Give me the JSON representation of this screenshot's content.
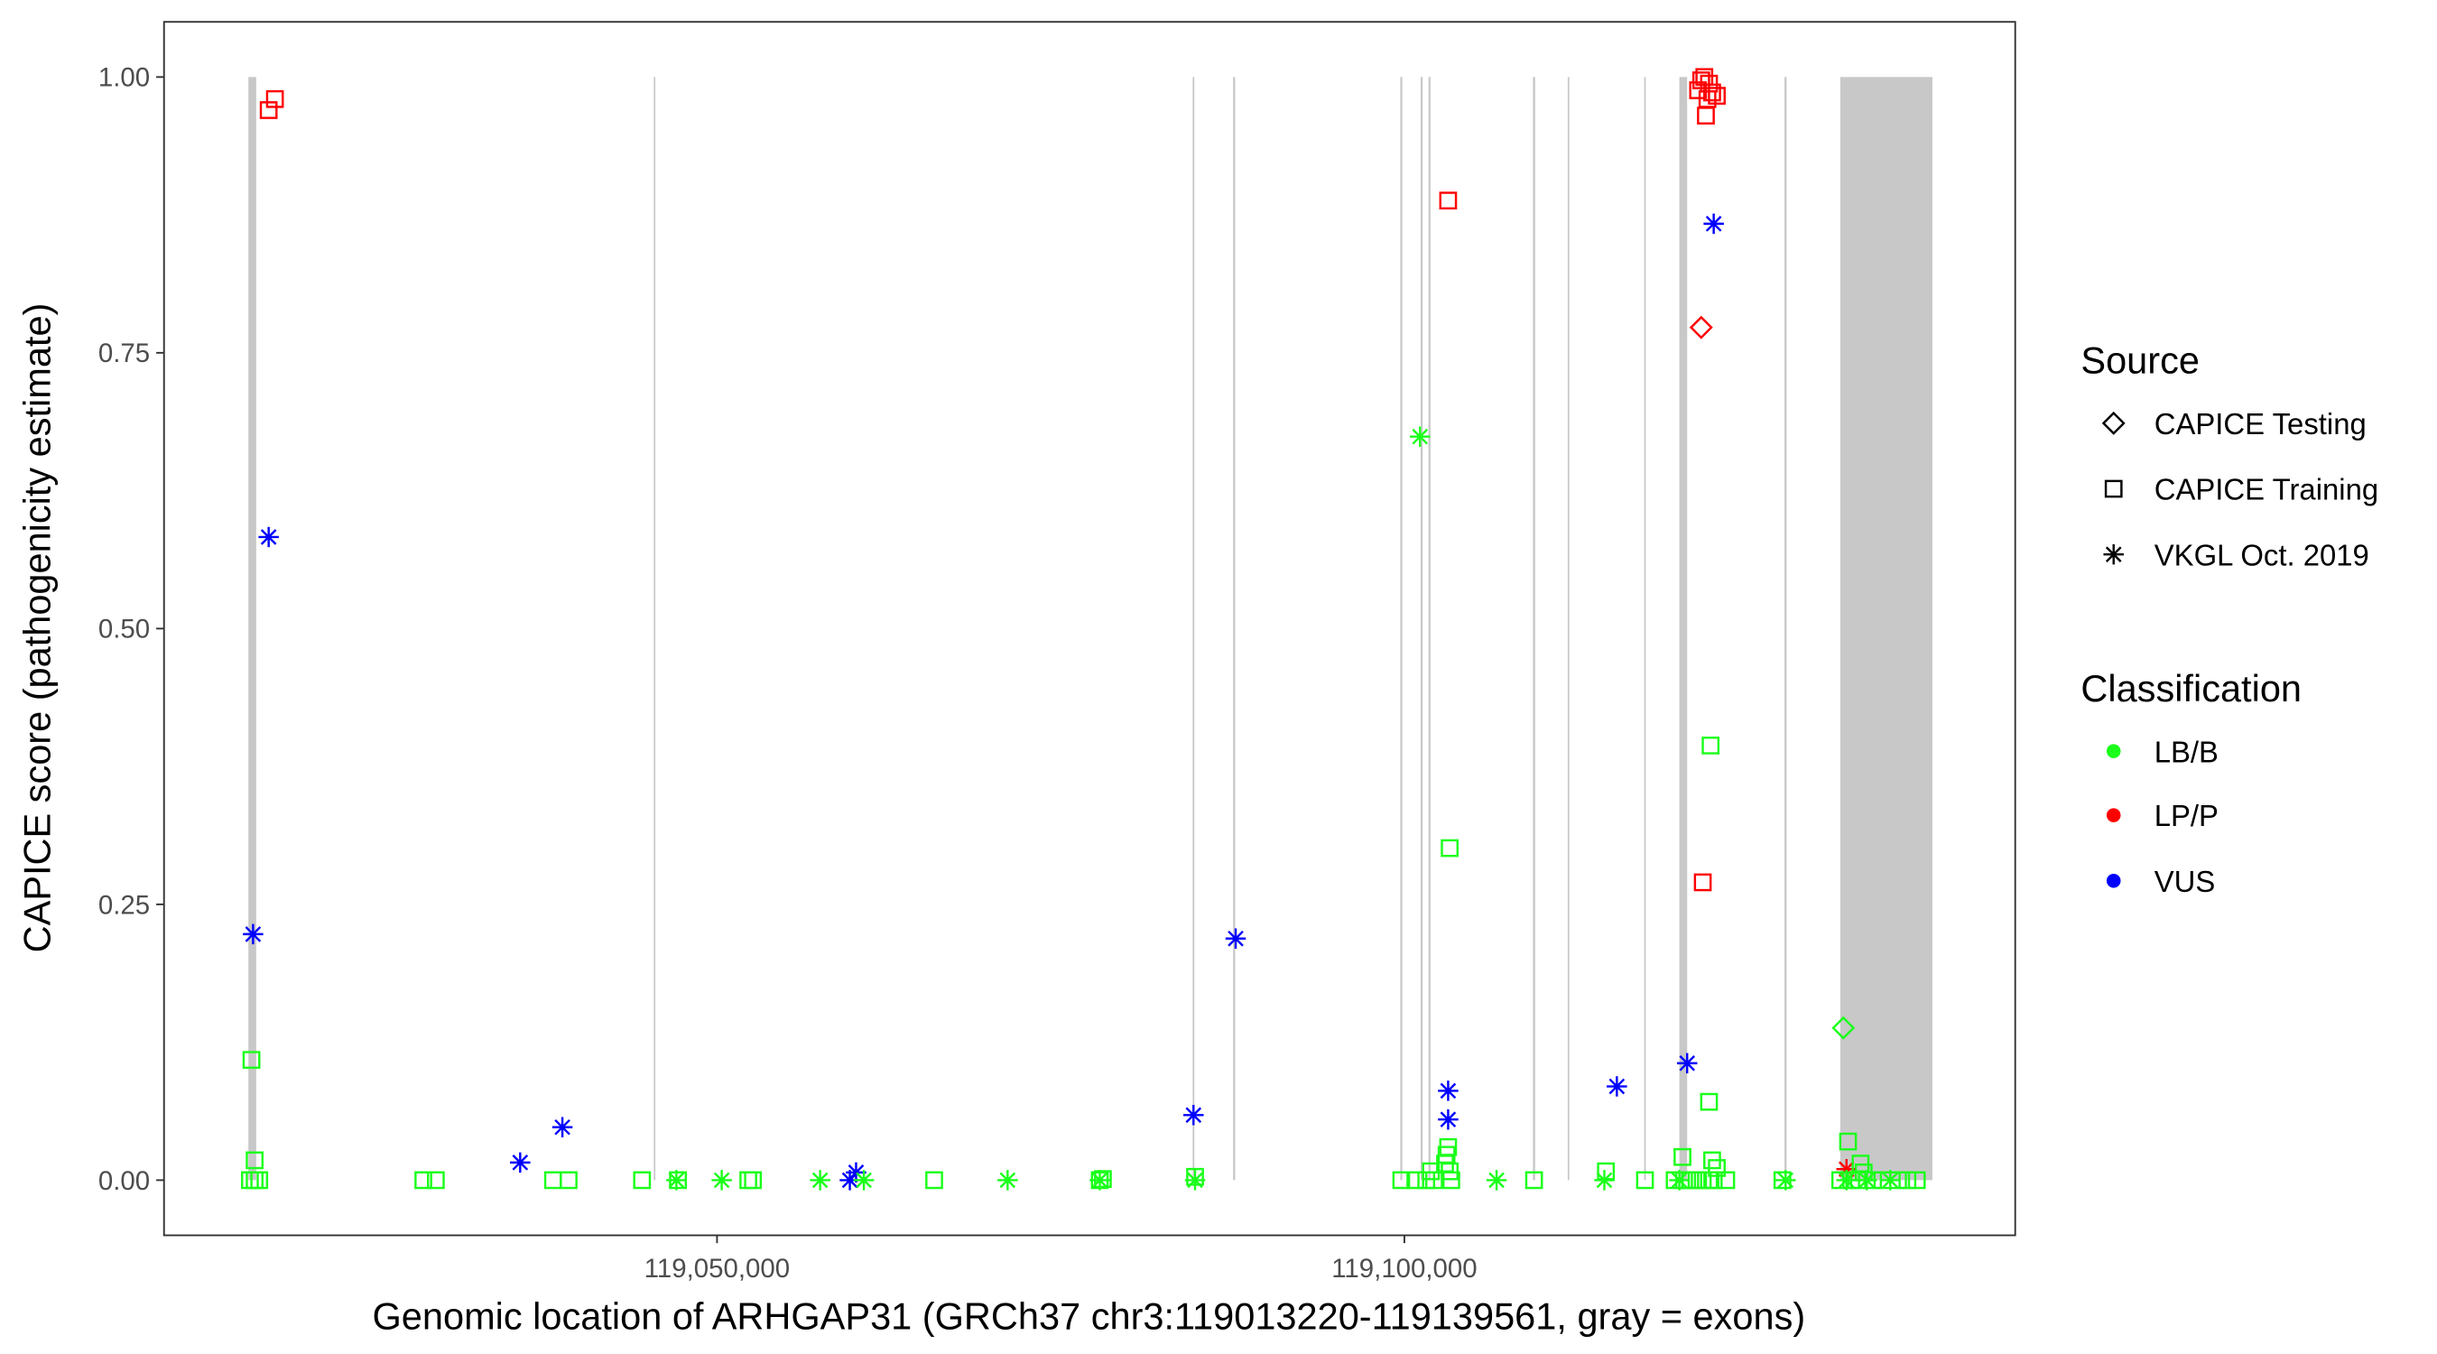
{
  "chart_data": {
    "type": "scatter",
    "xlabel": "Genomic location of ARHGAP31 (GRCh37 chr3:119013220-119139561, gray = exons)",
    "ylabel": "CAPICE score (pathogenicity estimate)",
    "xlim": [
      119009773,
      119144432
    ],
    "ylim": [
      -0.05,
      1.05
    ],
    "x_ticks": [
      119050000,
      119100000
    ],
    "x_tick_labels": [
      "119,050,000",
      "119,100,000"
    ],
    "y_ticks": [
      0,
      0.25,
      0.5,
      0.75,
      1.0
    ],
    "y_tick_labels": [
      "0.00",
      "0.25",
      "0.50",
      "0.75",
      "1.00"
    ],
    "grid": false,
    "legend_position": "right",
    "legend": {
      "source_title": "Source",
      "sources": [
        {
          "key": "testing",
          "label": "CAPICE Testing",
          "shape": "diamond"
        },
        {
          "key": "training",
          "label": "CAPICE Training",
          "shape": "square"
        },
        {
          "key": "vkgl",
          "label": "VKGL Oct. 2019",
          "shape": "asterisk"
        }
      ],
      "class_title": "Classification",
      "classes": [
        {
          "key": "LB/B",
          "label": "LB/B",
          "color": "#1AFF1A"
        },
        {
          "key": "LP/P",
          "label": "LP/P",
          "color": "#FF0000"
        },
        {
          "key": "VUS",
          "label": "VUS",
          "color": "#0000FF"
        }
      ]
    },
    "exon_color": "#C8C8C8",
    "exons": [
      [
        119015909,
        119016477
      ],
      [
        119045400,
        119045510
      ],
      [
        119084600,
        119084720
      ],
      [
        119087540,
        119087690
      ],
      [
        119099700,
        119099850
      ],
      [
        119101180,
        119101330
      ],
      [
        119101750,
        119101900
      ],
      [
        119109350,
        119109510
      ],
      [
        119111880,
        119111990
      ],
      [
        119117440,
        119117560
      ],
      [
        119120000,
        119120568
      ],
      [
        119127650,
        119127800
      ],
      [
        119131705,
        119138409
      ]
    ],
    "points": [
      [
        119017385,
        0.97,
        "training",
        "LP/P"
      ],
      [
        119017840,
        0.98,
        "training",
        "LP/P"
      ],
      [
        119017385,
        0.583,
        "vkgl",
        "VUS"
      ],
      [
        119016250,
        0.223,
        "vkgl",
        "VUS"
      ],
      [
        119016135,
        0.109,
        "training",
        "LB/B"
      ],
      [
        119016365,
        0.018,
        "training",
        "LB/B"
      ],
      [
        119016020,
        0,
        "training",
        "LB/B"
      ],
      [
        119016365,
        0,
        "training",
        "LB/B"
      ],
      [
        119016700,
        0,
        "training",
        "LB/B"
      ],
      [
        119028636,
        0,
        "training",
        "LB/B"
      ],
      [
        119029545,
        0,
        "training",
        "LB/B"
      ],
      [
        119035680,
        0.016,
        "vkgl",
        "VUS"
      ],
      [
        119038750,
        0.048,
        "vkgl",
        "VUS"
      ],
      [
        119038068,
        0,
        "training",
        "LB/B"
      ],
      [
        119039204,
        0,
        "training",
        "LB/B"
      ],
      [
        119044545,
        0,
        "training",
        "LB/B"
      ],
      [
        119047045,
        0,
        "vkgl",
        "LB/B"
      ],
      [
        119047160,
        0,
        "training",
        "LB/B"
      ],
      [
        119050341,
        0,
        "vkgl",
        "LB/B"
      ],
      [
        119052273,
        0,
        "training",
        "LB/B"
      ],
      [
        119052614,
        0,
        "training",
        "LB/B"
      ],
      [
        119057500,
        0,
        "vkgl",
        "LB/B"
      ],
      [
        119059660,
        0,
        "vkgl",
        "VUS"
      ],
      [
        119060114,
        0.007,
        "vkgl",
        "VUS"
      ],
      [
        119060682,
        0,
        "vkgl",
        "LB/B"
      ],
      [
        119065795,
        0,
        "training",
        "LB/B"
      ],
      [
        119071136,
        0,
        "vkgl",
        "LB/B"
      ],
      [
        119077841,
        0,
        "vkgl",
        "LB/B"
      ],
      [
        119077841,
        0,
        "training",
        "LB/B"
      ],
      [
        119078068,
        0.001,
        "training",
        "LB/B"
      ],
      [
        119084773,
        0,
        "vkgl",
        "LB/B"
      ],
      [
        119084773,
        0.003,
        "training",
        "LB/B"
      ],
      [
        119084659,
        0.059,
        "vkgl",
        "VUS"
      ],
      [
        119087727,
        0.219,
        "vkgl",
        "VUS"
      ],
      [
        119101136,
        0.674,
        "vkgl",
        "LB/B"
      ],
      [
        119103182,
        0.888,
        "training",
        "LP/P"
      ],
      [
        119103295,
        0.301,
        "training",
        "LB/B"
      ],
      [
        119103182,
        0.081,
        "vkgl",
        "VUS"
      ],
      [
        119103182,
        0.055,
        "vkgl",
        "VUS"
      ],
      [
        119099773,
        0,
        "training",
        "LB/B"
      ],
      [
        119100795,
        0,
        "training",
        "LB/B"
      ],
      [
        119101591,
        0,
        "training",
        "LB/B"
      ],
      [
        119101932,
        0.008,
        "training",
        "LB/B"
      ],
      [
        119102159,
        0,
        "training",
        "LB/B"
      ],
      [
        119102955,
        0.015,
        "training",
        "LB/B"
      ],
      [
        119103068,
        0.023,
        "training",
        "LB/B"
      ],
      [
        119103182,
        0.03,
        "training",
        "LB/B"
      ],
      [
        119103295,
        0.008,
        "training",
        "LB/B"
      ],
      [
        119103409,
        0,
        "training",
        "LB/B"
      ],
      [
        119106705,
        0,
        "vkgl",
        "LB/B"
      ],
      [
        119109432,
        0,
        "training",
        "LB/B"
      ],
      [
        119114545,
        0,
        "vkgl",
        "LB/B"
      ],
      [
        119114659,
        0.008,
        "training",
        "LB/B"
      ],
      [
        119115455,
        0.085,
        "vkgl",
        "VUS"
      ],
      [
        119117500,
        0,
        "training",
        "LB/B"
      ],
      [
        119120568,
        0.106,
        "vkgl",
        "VUS"
      ],
      [
        119120227,
        0.021,
        "training",
        "LB/B"
      ],
      [
        119119659,
        0,
        "training",
        "LB/B"
      ],
      [
        119120000,
        0,
        "vkgl",
        "LB/B"
      ],
      [
        119120341,
        0,
        "training",
        "LB/B"
      ],
      [
        119120795,
        0,
        "training",
        "LB/B"
      ],
      [
        119121250,
        0,
        "training",
        "LB/B"
      ],
      [
        119121705,
        0,
        "training",
        "LB/B"
      ],
      [
        119122159,
        0,
        "training",
        "LB/B"
      ],
      [
        119122500,
        0,
        "training",
        "LB/B"
      ],
      [
        119123409,
        0,
        "training",
        "LB/B"
      ],
      [
        119121591,
        0.997,
        "training",
        "LP/P"
      ],
      [
        119121818,
        1.0,
        "training",
        "LP/P"
      ],
      [
        119122159,
        0.994,
        "training",
        "LP/P"
      ],
      [
        119121364,
        0.988,
        "training",
        "LP/P"
      ],
      [
        119122386,
        0.986,
        "training",
        "LP/P"
      ],
      [
        119122045,
        0.98,
        "training",
        "LP/P"
      ],
      [
        119122727,
        0.983,
        "training",
        "LP/P"
      ],
      [
        119121932,
        0.965,
        "training",
        "LP/P"
      ],
      [
        119122500,
        0.867,
        "vkgl",
        "VUS"
      ],
      [
        119121591,
        0.773,
        "testing",
        "LP/P"
      ],
      [
        119122273,
        0.394,
        "training",
        "LB/B"
      ],
      [
        119121705,
        0.27,
        "training",
        "LP/P"
      ],
      [
        119122159,
        0.071,
        "training",
        "LB/B"
      ],
      [
        119122386,
        0.018,
        "training",
        "LB/B"
      ],
      [
        119122727,
        0.011,
        "training",
        "LB/B"
      ],
      [
        119127500,
        0,
        "training",
        "LB/B"
      ],
      [
        119127727,
        0,
        "vkgl",
        "LB/B"
      ],
      [
        119131932,
        0.138,
        "testing",
        "LB/B"
      ],
      [
        119132273,
        0.035,
        "training",
        "LB/B"
      ],
      [
        119132159,
        0.01,
        "vkgl",
        "LP/P"
      ],
      [
        119133182,
        0.015,
        "training",
        "LB/B"
      ],
      [
        119133409,
        0.007,
        "training",
        "LB/B"
      ],
      [
        119131705,
        0,
        "training",
        "LB/B"
      ],
      [
        119132159,
        0,
        "vkgl",
        "LB/B"
      ],
      [
        119132500,
        0,
        "training",
        "LB/B"
      ],
      [
        119133068,
        0,
        "training",
        "LB/B"
      ],
      [
        119133636,
        0,
        "vkgl",
        "LB/B"
      ],
      [
        119134091,
        0,
        "training",
        "LB/B"
      ],
      [
        119134773,
        0,
        "training",
        "LB/B"
      ],
      [
        119135341,
        0,
        "vkgl",
        "LB/B"
      ],
      [
        119135909,
        0,
        "training",
        "LB/B"
      ],
      [
        119136591,
        0,
        "training",
        "LB/B"
      ],
      [
        119137273,
        0,
        "training",
        "LB/B"
      ]
    ]
  }
}
